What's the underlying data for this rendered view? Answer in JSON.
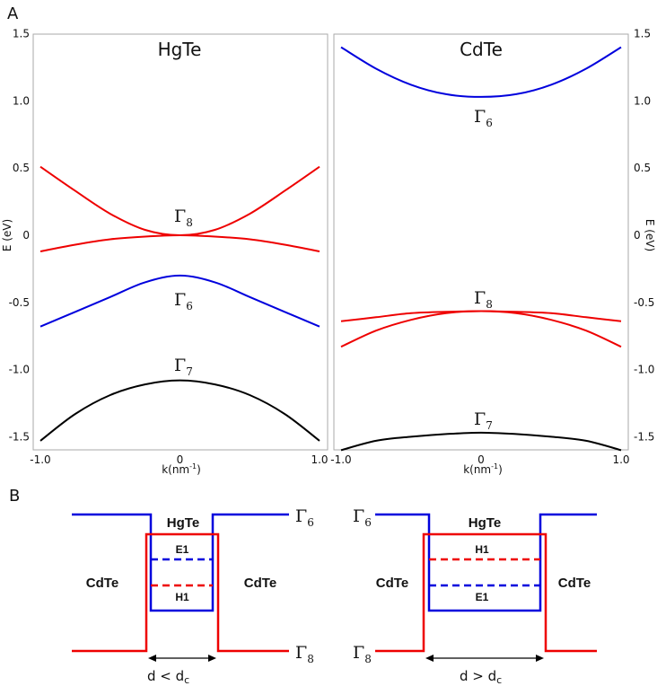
{
  "panel_a": {
    "label": "A",
    "y_axis_label": "E (eV)",
    "x_axis_label_base": "k(nm",
    "x_axis_label_sup": "-1",
    "x_axis_label_close": ")",
    "x_ticks": [
      "-1.0",
      "0",
      "1.0"
    ],
    "y_ticks": [
      "1.5",
      "1.0",
      "0.5",
      "0",
      "-0.5",
      "-1.0",
      "-1.5"
    ]
  },
  "panel_b": {
    "label": "B",
    "left": {
      "well": "HgTe",
      "barrier_left": "CdTe",
      "barrier_right": "CdTe",
      "upper_sublevel": "E1",
      "lower_sublevel": "H1",
      "band_top": "Γ6",
      "band_bottom": "Γ8",
      "width_label": "d < dc"
    },
    "right": {
      "well": "HgTe",
      "barrier_left": "CdTe",
      "barrier_right": "CdTe",
      "upper_sublevel": "H1",
      "lower_sublevel": "E1",
      "band_top": "Γ6",
      "band_bottom": "Γ8",
      "width_label": "d > dc"
    }
  },
  "colors": {
    "gamma6": "#0000dd",
    "gamma8": "#ee0000",
    "gamma7": "#000000"
  },
  "chart_data": [
    {
      "type": "line",
      "title": "HgTe",
      "xlabel": "k(nm-1)",
      "ylabel": "E (eV)",
      "xlim": [
        -1.0,
        1.0
      ],
      "ylim": [
        -1.55,
        1.55
      ],
      "series": [
        {
          "name": "Γ8",
          "color": "#ee0000",
          "x": [
            -1.0,
            -0.75,
            -0.5,
            -0.25,
            0,
            0.25,
            0.5,
            0.75,
            1.0
          ],
          "y": [
            0.51,
            0.33,
            0.16,
            0.04,
            0,
            0.04,
            0.16,
            0.33,
            0.51
          ]
        },
        {
          "name": "Γ8",
          "color": "#ee0000",
          "x": [
            -1.0,
            -0.75,
            -0.5,
            -0.25,
            0,
            0.25,
            0.5,
            0.75,
            1.0
          ],
          "y": [
            -0.12,
            -0.07,
            -0.03,
            -0.01,
            0,
            -0.01,
            -0.03,
            -0.07,
            -0.12
          ]
        },
        {
          "name": "Γ6",
          "color": "#0000dd",
          "x": [
            -1.0,
            -0.75,
            -0.5,
            -0.25,
            0,
            0.25,
            0.5,
            0.75,
            1.0
          ],
          "y": [
            -0.68,
            -0.57,
            -0.46,
            -0.35,
            -0.3,
            -0.35,
            -0.46,
            -0.57,
            -0.68
          ]
        },
        {
          "name": "Γ7",
          "color": "#000000",
          "x": [
            -1.0,
            -0.75,
            -0.5,
            -0.25,
            0,
            0.25,
            0.5,
            0.75,
            1.0
          ],
          "y": [
            -1.53,
            -1.33,
            -1.19,
            -1.11,
            -1.08,
            -1.11,
            -1.19,
            -1.33,
            -1.53
          ]
        }
      ]
    },
    {
      "type": "line",
      "title": "CdTe",
      "xlabel": "k(nm-1)",
      "ylabel": "E (eV)",
      "xlim": [
        -1.0,
        1.0
      ],
      "ylim": [
        -1.55,
        1.55
      ],
      "series": [
        {
          "name": "Γ6",
          "color": "#0000dd",
          "x": [
            -1.0,
            -0.75,
            -0.5,
            -0.25,
            0,
            0.25,
            0.5,
            0.75,
            1.0
          ],
          "y": [
            1.4,
            1.24,
            1.12,
            1.05,
            1.03,
            1.05,
            1.12,
            1.24,
            1.4
          ]
        },
        {
          "name": "Γ8",
          "color": "#ee0000",
          "x": [
            -1.0,
            -0.75,
            -0.5,
            -0.25,
            0,
            0.25,
            0.5,
            0.75,
            1.0
          ],
          "y": [
            -0.64,
            -0.61,
            -0.58,
            -0.57,
            -0.565,
            -0.57,
            -0.58,
            -0.61,
            -0.64
          ]
        },
        {
          "name": "Γ8",
          "color": "#ee0000",
          "x": [
            -1.0,
            -0.75,
            -0.5,
            -0.25,
            0,
            0.25,
            0.5,
            0.75,
            1.0
          ],
          "y": [
            -0.83,
            -0.71,
            -0.63,
            -0.58,
            -0.565,
            -0.58,
            -0.63,
            -0.71,
            -0.83
          ]
        },
        {
          "name": "Γ7",
          "color": "#000000",
          "x": [
            -1.0,
            -0.75,
            -0.5,
            -0.25,
            0,
            0.25,
            0.5,
            0.75,
            1.0
          ],
          "y": [
            -1.6,
            -1.53,
            -1.5,
            -1.48,
            -1.47,
            -1.48,
            -1.5,
            -1.53,
            -1.6
          ]
        }
      ]
    }
  ]
}
